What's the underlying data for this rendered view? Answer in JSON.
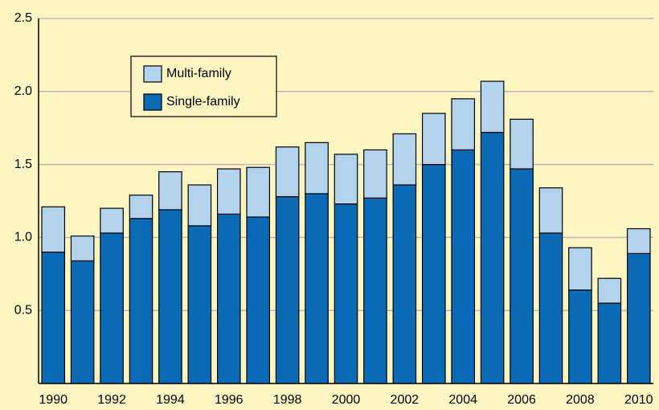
{
  "chart_data": {
    "type": "stacked_bar",
    "categories": [
      "1990",
      null,
      "1992",
      null,
      "1994",
      null,
      "1996",
      null,
      "1998",
      null,
      "2000",
      null,
      "2002",
      null,
      "2004",
      null,
      "2006",
      null,
      "2008",
      null,
      "2010"
    ],
    "series": [
      {
        "name": "Single-family",
        "color": "#0a6ab6",
        "values": [
          0.9,
          0.84,
          1.03,
          1.13,
          1.19,
          1.08,
          1.16,
          1.14,
          1.28,
          1.3,
          1.23,
          1.27,
          1.36,
          1.5,
          1.6,
          1.72,
          1.47,
          1.03,
          0.64,
          0.55,
          0.89
        ]
      },
      {
        "name": "Multi-family",
        "color": "#b3d3ec",
        "values": [
          0.31,
          0.17,
          0.17,
          0.16,
          0.26,
          0.28,
          0.31,
          0.34,
          0.34,
          0.35,
          0.34,
          0.33,
          0.35,
          0.35,
          0.35,
          0.35,
          0.34,
          0.31,
          0.29,
          0.17,
          0.17
        ]
      }
    ],
    "ylim": [
      0,
      2.5
    ],
    "yticks": [
      0.5,
      {
        "value": 1.0,
        "label": "1.0"
      },
      1.5,
      {
        "value": 2.0,
        "label": "2.0"
      },
      2.5
    ],
    "grid": true
  }
}
